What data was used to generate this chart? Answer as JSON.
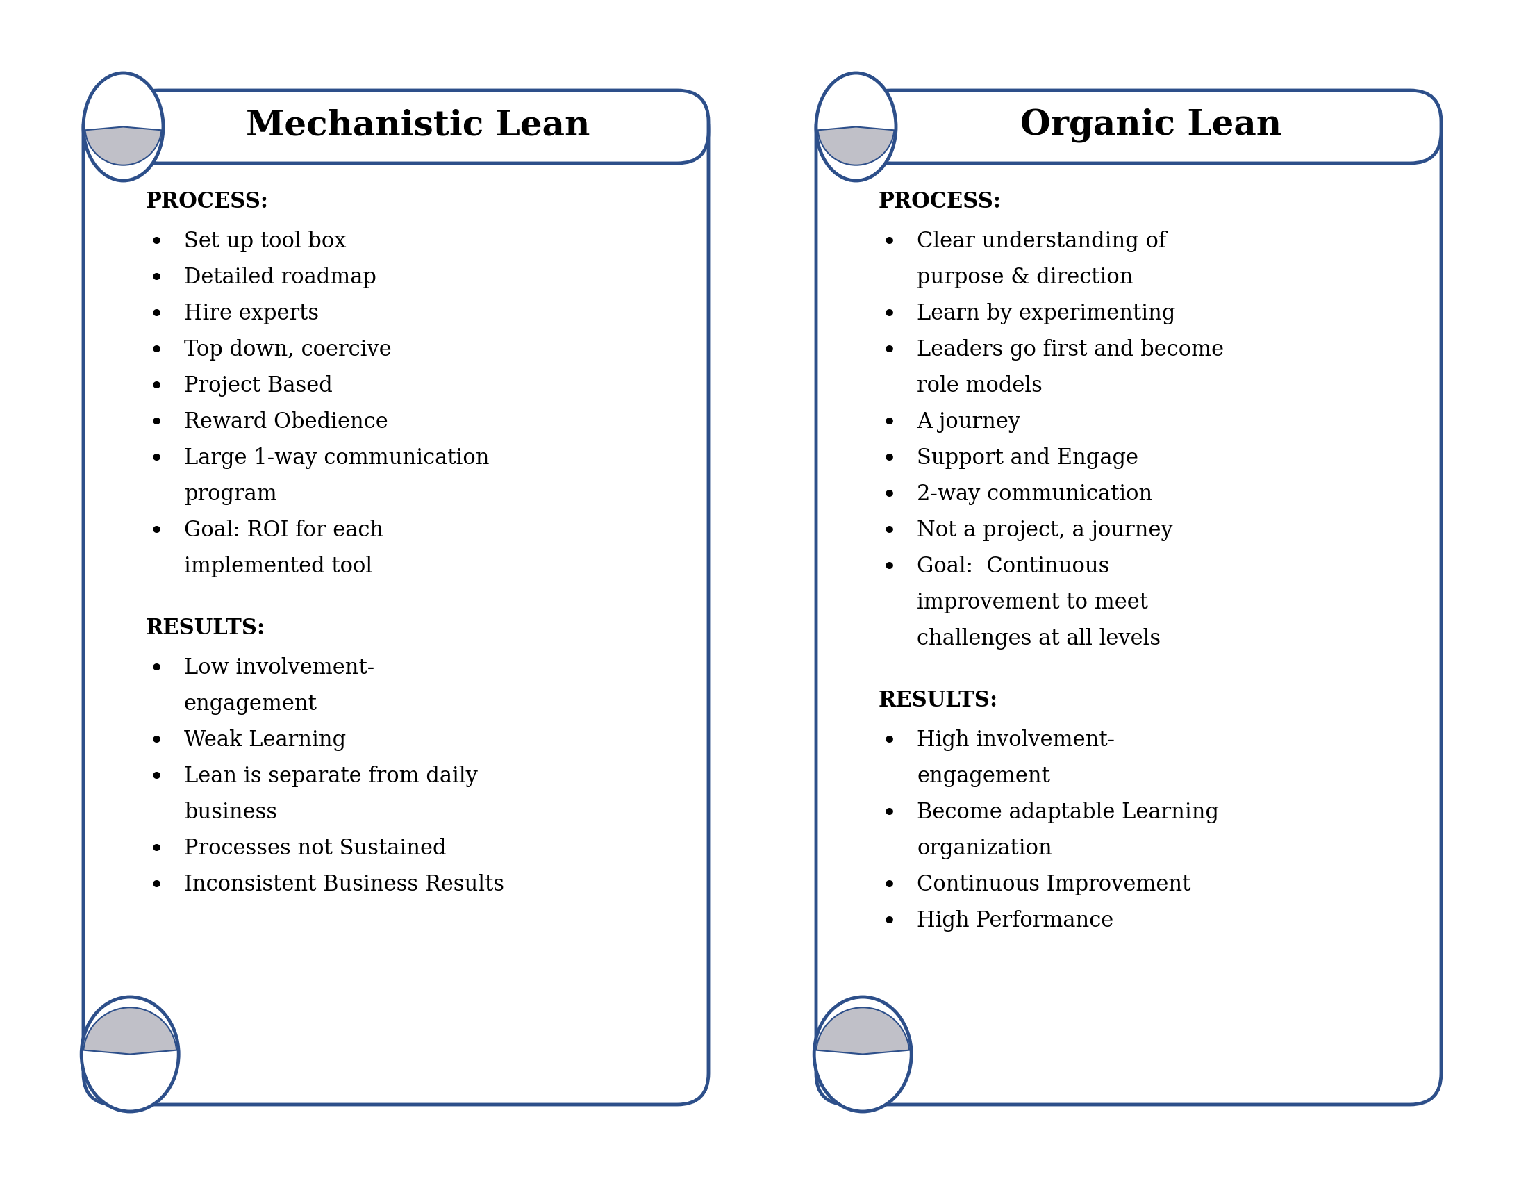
{
  "bg_color": "#ffffff",
  "border_color": "#2d4f8a",
  "scroll_fill": "#c0c0c8",
  "title_font_size": 36,
  "body_font_size": 22,
  "section_font_size": 22,
  "left_title": "Mechanistic Lean",
  "right_title": "Organic Lean",
  "left_process_label": "PROCESS:",
  "left_process_items": [
    "Set up tool box",
    "Detailed roadmap",
    "Hire experts",
    "Top down, coercive",
    "Project Based",
    "Reward Obedience",
    "Large 1-way communication\nprogram",
    "Goal: ROI for each\nimplemented tool"
  ],
  "left_results_label": "RESULTS:",
  "left_results_items": [
    "Low involvement-\nengagement",
    "Weak Learning",
    "Lean is separate from daily\nbusiness",
    "Processes not Sustained",
    "Inconsistent Business Results"
  ],
  "right_process_label": "PROCESS:",
  "right_process_items": [
    "Clear understanding of\npurpose & direction",
    "Learn by experimenting",
    "Leaders go first and become\nrole models",
    "A journey",
    "Support and Engage",
    "2-way communication",
    "Not a project, a journey",
    "Goal:  Continuous\nimprovement to meet\nchallenges at all levels"
  ],
  "right_results_label": "RESULTS:",
  "right_results_items": [
    "High involvement-\nengagement",
    "Become adaptable Learning\norganization",
    "Continuous Improvement",
    "High Performance"
  ]
}
